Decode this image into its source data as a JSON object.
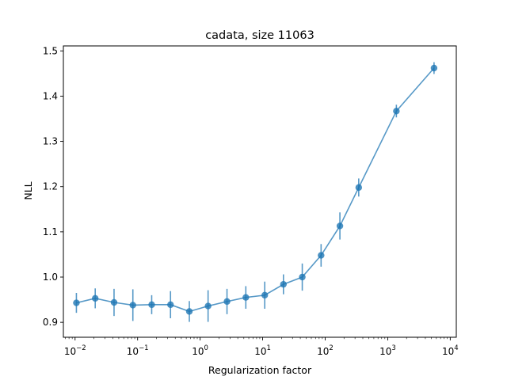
{
  "chart_data": {
    "type": "scatter",
    "title": "cadata, size 11063",
    "xlabel": "Regularization factor",
    "ylabel": "NLL",
    "xscale": "log",
    "xlim": [
      0.0065,
      12500
    ],
    "ylim": [
      0.867,
      1.511
    ],
    "color": "#1f77b4",
    "grid": false,
    "x_ticks": [
      {
        "value": 0.01,
        "base": "10",
        "exp": "−2"
      },
      {
        "value": 0.1,
        "base": "10",
        "exp": "−1"
      },
      {
        "value": 1,
        "base": "10",
        "exp": "0"
      },
      {
        "value": 10,
        "base": "10",
        "exp": "1"
      },
      {
        "value": 100,
        "base": "10",
        "exp": "2"
      },
      {
        "value": 1000,
        "base": "10",
        "exp": "3"
      },
      {
        "value": 10000,
        "base": "10",
        "exp": "4"
      }
    ],
    "y_ticks": [
      {
        "value": 0.9,
        "label": "0.9"
      },
      {
        "value": 1.0,
        "label": "1.0"
      },
      {
        "value": 1.1,
        "label": "1.1"
      },
      {
        "value": 1.2,
        "label": "1.2"
      },
      {
        "value": 1.3,
        "label": "1.3"
      },
      {
        "value": 1.4,
        "label": "1.4"
      },
      {
        "value": 1.5,
        "label": "1.5"
      }
    ],
    "series": [
      {
        "x": [
          0.0105,
          0.021,
          0.042,
          0.084,
          0.168,
          0.336,
          0.672,
          1.34,
          2.69,
          5.38,
          10.8,
          21.5,
          43.0,
          86.0,
          172,
          344,
          1376,
          5504
        ],
        "y": [
          0.943,
          0.953,
          0.944,
          0.938,
          0.939,
          0.939,
          0.924,
          0.936,
          0.946,
          0.955,
          0.96,
          0.984,
          1.0,
          1.048,
          1.113,
          1.198,
          1.367,
          1.462
        ],
        "yerr": [
          0.022,
          0.022,
          0.03,
          0.035,
          0.021,
          0.03,
          0.023,
          0.035,
          0.028,
          0.025,
          0.03,
          0.022,
          0.03,
          0.025,
          0.03,
          0.02,
          0.014,
          0.013
        ]
      }
    ]
  }
}
